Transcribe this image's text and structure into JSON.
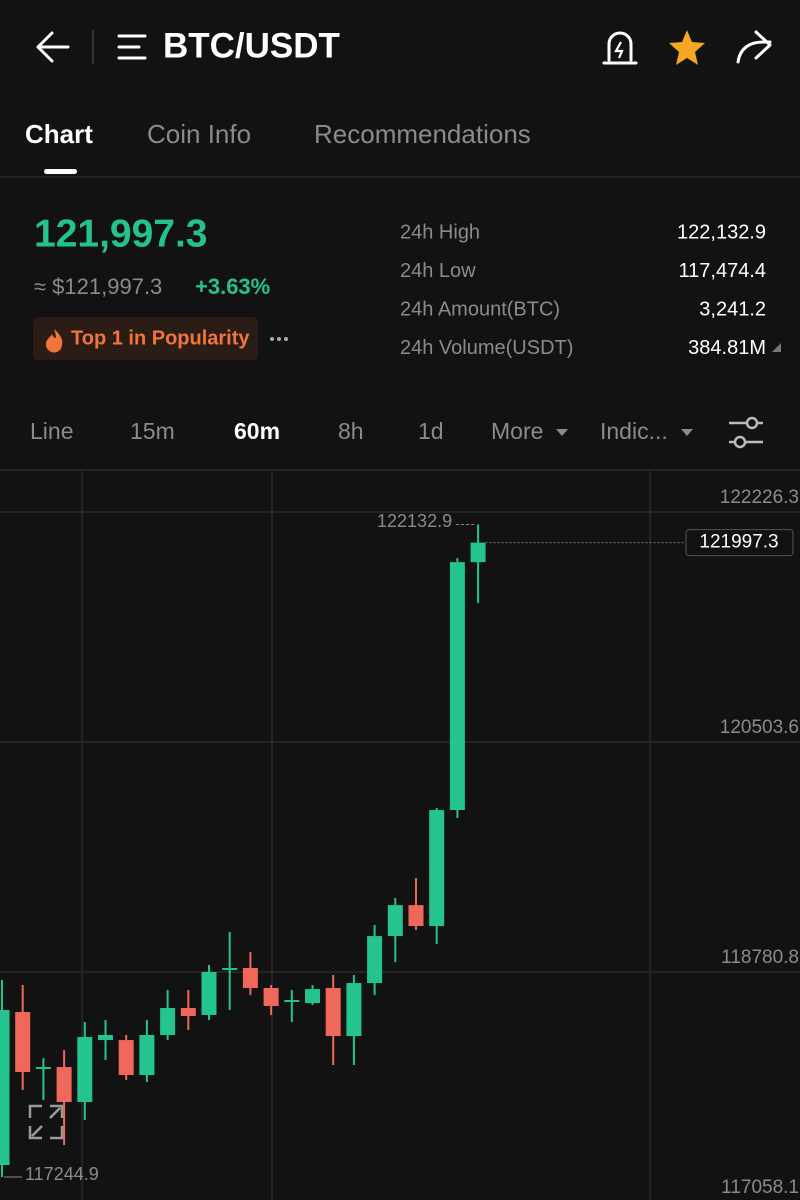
{
  "header": {
    "title": "BTC/USDT"
  },
  "tabs": [
    "Chart",
    "Coin Info",
    "Recommendations"
  ],
  "ticker": {
    "price": "121,997.3",
    "approx": "≈ $121,997.3",
    "change": "+3.63%",
    "badge": "Top 1 in Popularity"
  },
  "stats": [
    {
      "label": "24h High",
      "value": "122,132.9"
    },
    {
      "label": "24h Low",
      "value": "117,474.4"
    },
    {
      "label": "24h Amount(BTC)",
      "value": "3,241.2"
    },
    {
      "label": "24h Volume(USDT)",
      "value": "384.81M"
    }
  ],
  "intervals": [
    "Line",
    "15m",
    "60m",
    "8h",
    "1d",
    "More",
    "Indic..."
  ],
  "chart_data": {
    "type": "candlestick",
    "ylim": [
      117073,
      122541
    ],
    "yticks": [
      122226.3,
      120503.6,
      118780.8,
      117058.1
    ],
    "up_color": "#23c48e",
    "down_color": "#f0675b",
    "grid": true,
    "candles": {
      "open": [
        117335,
        118481,
        118062,
        118069,
        117807,
        118271,
        118271,
        118009,
        118309,
        118511,
        118459,
        118796,
        118811,
        118661,
        118556,
        118548,
        118661,
        118301,
        118698,
        119050,
        119282,
        119125,
        119994,
        121851
      ],
      "high": [
        118721,
        118683,
        118136,
        118196,
        118406,
        118421,
        118309,
        118421,
        118646,
        118646,
        118833,
        119080,
        118930,
        118683,
        118646,
        118683,
        118758,
        118758,
        119133,
        119335,
        119485,
        120009,
        121881,
        122132.9
      ],
      "low": [
        117244.9,
        117897,
        117822,
        117485,
        117672,
        118121,
        117972,
        117957,
        118271,
        118346,
        118421,
        118496,
        118608,
        118459,
        118406,
        118533,
        118084,
        118084,
        118608,
        118855,
        119095,
        118990,
        119934,
        121544
      ],
      "close": [
        118496,
        118032,
        118069,
        117807,
        118294,
        118309,
        118009,
        118309,
        118511,
        118451,
        118781,
        118811,
        118661,
        118526,
        118571,
        118653,
        118301,
        118698,
        119050,
        119282,
        119125,
        119994,
        121851,
        121997.3
      ]
    }
  }
}
